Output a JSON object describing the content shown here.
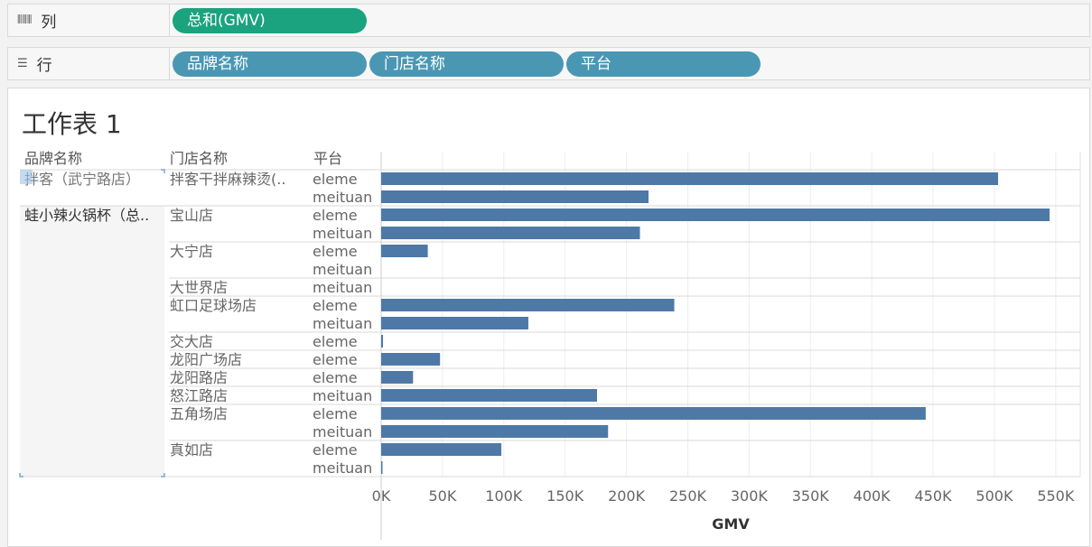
{
  "columns_shelf": {
    "label": "列",
    "icon": "column-icon",
    "pills": [
      "总和(GMV)"
    ]
  },
  "rows_shelf": {
    "label": "行",
    "icon": "rows-icon",
    "pills": [
      "品牌名称",
      "门店名称",
      "平台"
    ]
  },
  "sheet": {
    "title": "工作表 1"
  },
  "colors": {
    "bar": "#4e79a7",
    "measure_pill": "#1aa37e",
    "dimension_pill": "#4a97b4"
  },
  "chart_data": {
    "type": "bar",
    "orientation": "horizontal",
    "row_headers": [
      "品牌名称",
      "门店名称",
      "平台"
    ],
    "xlabel": "GMV",
    "xlim": [
      0,
      570000
    ],
    "ticks": [
      "0K",
      "50K",
      "100K",
      "150K",
      "200K",
      "250K",
      "300K",
      "350K",
      "400K",
      "450K",
      "500K",
      "550K"
    ],
    "grid": true,
    "brands": [
      {
        "name": "拌客（武宁路店）",
        "stores": [
          {
            "name": "拌客干拌麻辣烫(..",
            "rows": [
              {
                "platform": "eleme",
                "value": 503000
              },
              {
                "platform": "meituan",
                "value": 218000
              }
            ]
          }
        ]
      },
      {
        "name": "蛙小辣火锅杯（总..",
        "stores": [
          {
            "name": "宝山店",
            "rows": [
              {
                "platform": "eleme",
                "value": 545000
              },
              {
                "platform": "meituan",
                "value": 211000
              }
            ]
          },
          {
            "name": "大宁店",
            "rows": [
              {
                "platform": "eleme",
                "value": 38000
              },
              {
                "platform": "meituan",
                "value": 0
              }
            ]
          },
          {
            "name": "大世界店",
            "rows": [
              {
                "platform": "meituan",
                "value": 0
              }
            ]
          },
          {
            "name": "虹口足球场店",
            "rows": [
              {
                "platform": "eleme",
                "value": 239000
              },
              {
                "platform": "meituan",
                "value": 120000
              }
            ]
          },
          {
            "name": "交大店",
            "rows": [
              {
                "platform": "eleme",
                "value": 1500
              }
            ]
          },
          {
            "name": "龙阳广场店",
            "rows": [
              {
                "platform": "eleme",
                "value": 48000
              }
            ]
          },
          {
            "name": "龙阳路店",
            "rows": [
              {
                "platform": "eleme",
                "value": 26000
              }
            ]
          },
          {
            "name": "怒江路店",
            "rows": [
              {
                "platform": "meituan",
                "value": 176000
              }
            ]
          },
          {
            "name": "五角场店",
            "rows": [
              {
                "platform": "eleme",
                "value": 444000
              },
              {
                "platform": "meituan",
                "value": 185000
              }
            ]
          },
          {
            "name": "真如店",
            "rows": [
              {
                "platform": "eleme",
                "value": 98000
              },
              {
                "platform": "meituan",
                "value": 800
              }
            ]
          }
        ]
      }
    ]
  }
}
